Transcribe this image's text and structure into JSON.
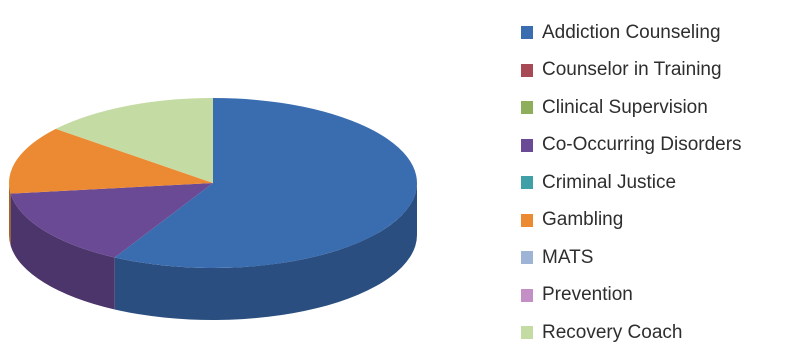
{
  "chart_data": {
    "type": "pie",
    "style": "3d-pie",
    "legend_position": "right",
    "slices": [
      {
        "label": "Addiction Counseling",
        "value": 58,
        "color": "#3a6cb0"
      },
      {
        "label": "Counselor in Training",
        "value": 0,
        "color": "#a84a55"
      },
      {
        "label": "Clinical Supervision",
        "value": 0,
        "color": "#8fae5c"
      },
      {
        "label": "Co-Occurring Disorders",
        "value": 15,
        "color": "#6a4a94"
      },
      {
        "label": "Criminal Justice",
        "value": 0,
        "color": "#3fa0a8"
      },
      {
        "label": "Gambling",
        "value": 13,
        "color": "#ec8a33"
      },
      {
        "label": "MATS",
        "value": 0,
        "color": "#9eb4d6"
      },
      {
        "label": "Prevention",
        "value": 0,
        "color": "#c48fc6"
      },
      {
        "label": "Recovery Coach",
        "value": 14,
        "color": "#c4dca3"
      }
    ]
  }
}
